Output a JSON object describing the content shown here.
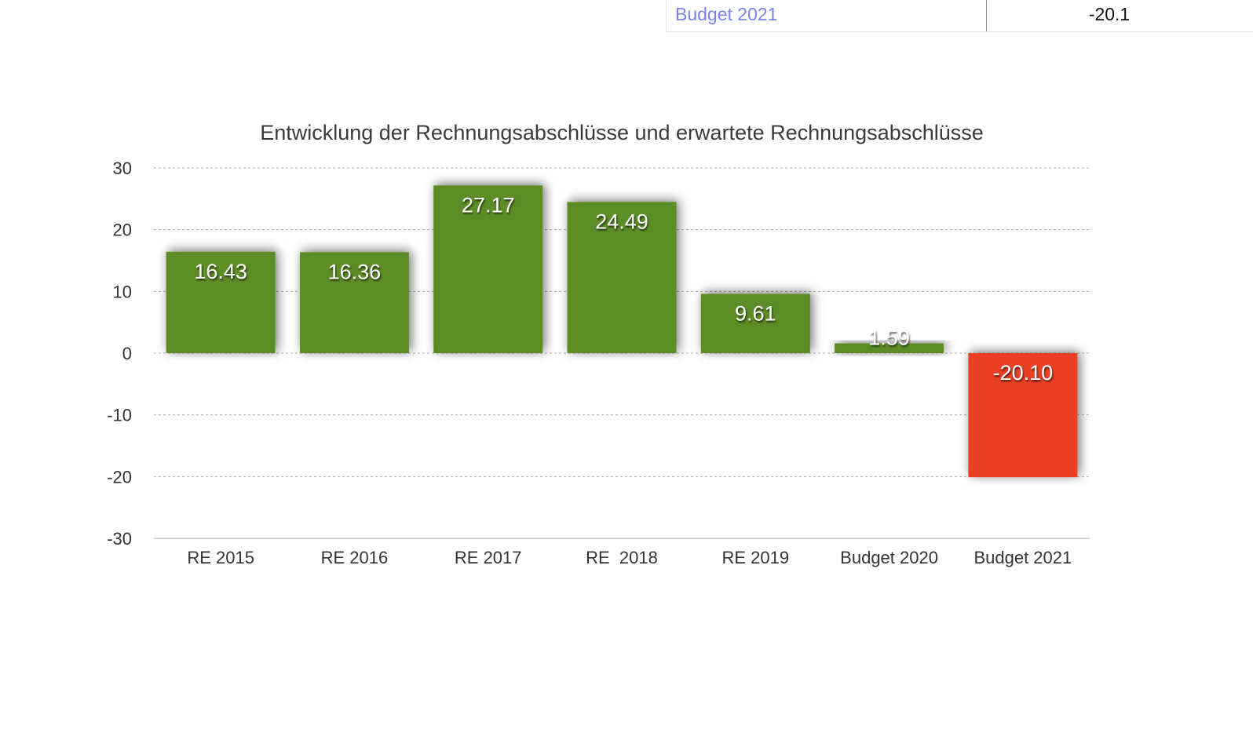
{
  "table_row": {
    "label": "Budget 2021",
    "value": "-20.1"
  },
  "chart_data": {
    "type": "bar",
    "title": "Entwicklung der Rechnungsabschlüsse und erwartete Rechnungsabschlüsse",
    "categories": [
      "RE 2015",
      "RE 2016",
      "RE 2017",
      "RE  2018",
      "RE 2019",
      "Budget 2020",
      "Budget 2021"
    ],
    "values": [
      16.43,
      16.36,
      27.17,
      24.49,
      9.61,
      1.59,
      -20.1
    ],
    "data_labels": [
      "16.43",
      "16.36",
      "27.17",
      "24.49",
      "9.61",
      "1.59",
      "-20.10"
    ],
    "ylim": [
      -30,
      30
    ],
    "yticks": [
      "30",
      "20",
      "10",
      "0",
      "-10",
      "-20",
      "-30"
    ],
    "ytick_values": [
      30,
      20,
      10,
      0,
      -10,
      -20,
      -30
    ],
    "grid": true,
    "xlabel": "",
    "ylabel": "",
    "colors": {
      "positive": "#5c8c28",
      "negative": "#e94027"
    }
  }
}
